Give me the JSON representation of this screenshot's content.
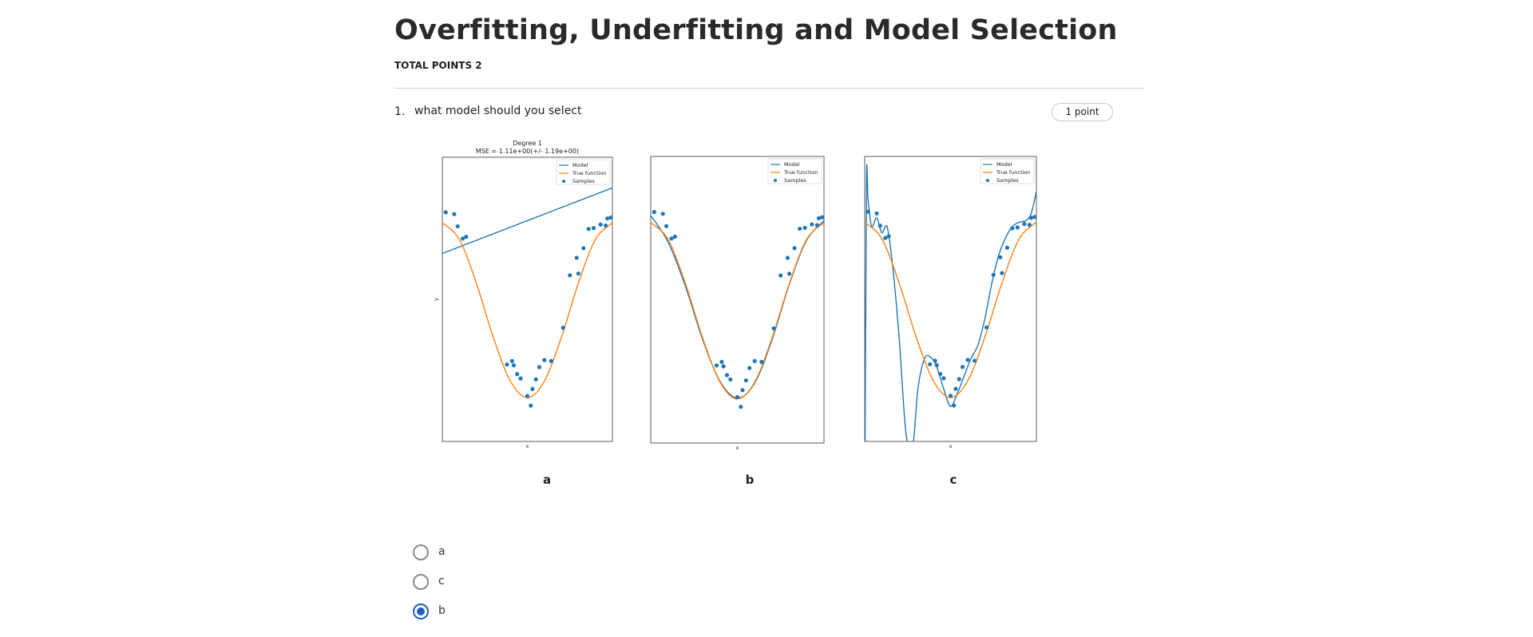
{
  "quiz": {
    "title": "Overfitting, Underfitting and Model Selection",
    "total_points": "TOTAL POINTS 2"
  },
  "question": {
    "number": "1.",
    "text": "what model should you select",
    "points": "1 point"
  },
  "figure": {
    "panel_labels": [
      "a",
      "b",
      "c"
    ],
    "title": "Degree 1",
    "mse": "MSE = 1.11e+00(+/- 1.19e+00)",
    "xlabel": "x",
    "ylabel": "y",
    "legend": [
      "Model",
      "True function",
      "Samples"
    ],
    "colors": {
      "model": "#1f77b4",
      "true_function": "#ff7f0e",
      "samples": "#1f77b4"
    }
  },
  "options": [
    {
      "label": "a",
      "selected": false
    },
    {
      "label": "c",
      "selected": false
    },
    {
      "label": "b",
      "selected": true
    }
  ],
  "chart_data": [
    {
      "type": "line",
      "title": "Degree 1",
      "subtitle": "MSE = 1.11e+00(+/- 1.19e+00)",
      "xlabel": "x",
      "ylabel": "y",
      "legend_position": "top-right",
      "series": [
        {
          "name": "Model",
          "x": [
            0,
            1
          ],
          "y": [
            0.65,
            1.4
          ]
        },
        {
          "name": "True function",
          "x": [
            0,
            0.1,
            0.2,
            0.3,
            0.4,
            0.5,
            0.6,
            0.7,
            0.8,
            0.9,
            1.0
          ],
          "y": [
            1.0,
            0.81,
            0.31,
            -0.31,
            -0.81,
            -1.0,
            -0.81,
            -0.31,
            0.31,
            0.81,
            1.0
          ]
        },
        {
          "name": "Samples",
          "x": [
            0.02,
            0.07,
            0.09,
            0.12,
            0.14,
            0.38,
            0.41,
            0.42,
            0.44,
            0.46,
            0.5,
            0.52,
            0.53,
            0.55,
            0.57,
            0.6,
            0.64,
            0.71,
            0.75,
            0.79,
            0.8,
            0.83,
            0.86,
            0.89,
            0.93,
            0.96,
            0.97,
            0.99
          ],
          "y": [
            1.12,
            1.1,
            0.96,
            0.82,
            0.84,
            -0.62,
            -0.58,
            -0.63,
            -0.73,
            -0.78,
            -0.98,
            -1.09,
            -0.9,
            -0.79,
            -0.65,
            -0.57,
            -0.58,
            -0.2,
            0.4,
            0.6,
            0.42,
            0.71,
            0.93,
            0.94,
            0.98,
            0.97,
            1.05,
            1.06
          ]
        }
      ]
    },
    {
      "type": "line",
      "title": "",
      "xlabel": "x",
      "ylabel": "",
      "legend_position": "top-right",
      "series": [
        {
          "name": "Model",
          "x": [
            0,
            0.1,
            0.2,
            0.3,
            0.4,
            0.5,
            0.6,
            0.7,
            0.8,
            0.9,
            1.0
          ],
          "y": [
            1.08,
            0.78,
            0.28,
            -0.33,
            -0.8,
            -0.99,
            -0.82,
            -0.33,
            0.3,
            0.8,
            1.02
          ]
        },
        {
          "name": "True function",
          "x": [
            0,
            0.1,
            0.2,
            0.3,
            0.4,
            0.5,
            0.6,
            0.7,
            0.8,
            0.9,
            1.0
          ],
          "y": [
            1.0,
            0.81,
            0.31,
            -0.31,
            -0.81,
            -1.0,
            -0.81,
            -0.31,
            0.31,
            0.81,
            1.0
          ]
        },
        {
          "name": "Samples",
          "x": [
            0.02,
            0.07,
            0.09,
            0.12,
            0.14,
            0.38,
            0.41,
            0.42,
            0.44,
            0.46,
            0.5,
            0.52,
            0.53,
            0.55,
            0.57,
            0.6,
            0.64,
            0.71,
            0.75,
            0.79,
            0.8,
            0.83,
            0.86,
            0.89,
            0.93,
            0.96,
            0.97,
            0.99
          ],
          "y": [
            1.12,
            1.1,
            0.96,
            0.82,
            0.84,
            -0.62,
            -0.58,
            -0.63,
            -0.73,
            -0.78,
            -0.98,
            -1.09,
            -0.9,
            -0.79,
            -0.65,
            -0.57,
            -0.58,
            -0.2,
            0.4,
            0.6,
            0.42,
            0.71,
            0.93,
            0.94,
            0.98,
            0.97,
            1.05,
            1.06
          ]
        }
      ]
    },
    {
      "type": "line",
      "title": "",
      "xlabel": "x",
      "ylabel": "",
      "legend_position": "top-right",
      "series": [
        {
          "name": "Model",
          "x": [
            0.0,
            0.01,
            0.02,
            0.04,
            0.07,
            0.1,
            0.13,
            0.16,
            0.2,
            0.24,
            0.28,
            0.31,
            0.35,
            0.39,
            0.42,
            0.46,
            0.5,
            0.54,
            0.58,
            0.62,
            0.66,
            0.7,
            0.74,
            0.78,
            0.82,
            0.86,
            0.9,
            0.94,
            0.97,
            1.0
          ],
          "y": [
            -2.5,
            1.4,
            1.25,
            0.95,
            1.05,
            0.88,
            0.95,
            0.55,
            -0.3,
            -1.4,
            -1.55,
            -0.9,
            -0.55,
            -0.55,
            -0.65,
            -0.9,
            -1.1,
            -0.95,
            -0.75,
            -0.55,
            -0.4,
            -0.1,
            0.3,
            0.62,
            0.82,
            0.95,
            1.0,
            1.02,
            1.1,
            1.35
          ]
        },
        {
          "name": "True function",
          "x": [
            0,
            0.1,
            0.2,
            0.3,
            0.4,
            0.5,
            0.6,
            0.7,
            0.8,
            0.9,
            1.0
          ],
          "y": [
            1.0,
            0.81,
            0.31,
            -0.31,
            -0.81,
            -1.0,
            -0.81,
            -0.31,
            0.31,
            0.81,
            1.0
          ]
        },
        {
          "name": "Samples",
          "x": [
            0.02,
            0.07,
            0.09,
            0.12,
            0.14,
            0.38,
            0.41,
            0.42,
            0.44,
            0.46,
            0.5,
            0.52,
            0.53,
            0.55,
            0.57,
            0.6,
            0.64,
            0.71,
            0.75,
            0.79,
            0.8,
            0.83,
            0.86,
            0.89,
            0.93,
            0.96,
            0.97,
            0.99
          ],
          "y": [
            1.12,
            1.1,
            0.96,
            0.82,
            0.84,
            -0.62,
            -0.58,
            -0.63,
            -0.73,
            -0.78,
            -0.98,
            -1.09,
            -0.9,
            -0.79,
            -0.65,
            -0.57,
            -0.58,
            -0.2,
            0.4,
            0.6,
            0.42,
            0.71,
            0.93,
            0.94,
            0.98,
            0.97,
            1.05,
            1.06
          ]
        }
      ]
    }
  ]
}
